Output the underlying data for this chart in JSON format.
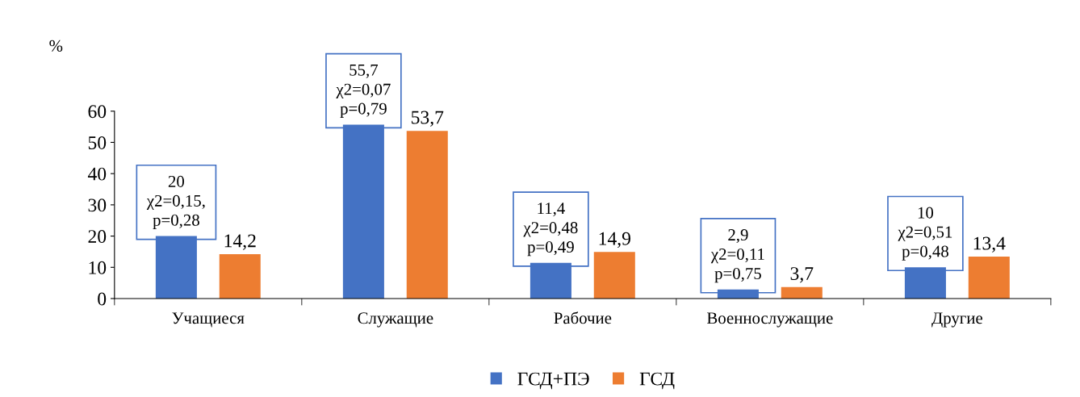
{
  "chart_data": {
    "type": "bar",
    "ylabel": "%",
    "categories": [
      "Учащиеся",
      "Служащие",
      "Рабочие",
      "Военнослужащие",
      "Другие"
    ],
    "series": [
      {
        "name": "ГСД+ПЭ",
        "color": "#4472c4",
        "values": [
          20,
          55.7,
          11.4,
          2.9,
          10
        ],
        "value_labels": [
          "20\nχ2=0,15,\np=0,28",
          "55,7\nχ2=0,07\np=0,79",
          "11,4\nχ2=0,48\np=0,49",
          "2,9\nχ2=0,11\np=0,75",
          "10\nχ2=0,51\np=0,48"
        ]
      },
      {
        "name": "ГСД",
        "color": "#ed7d31",
        "values": [
          14.2,
          53.7,
          14.9,
          3.7,
          13.4
        ],
        "value_labels": [
          "14,2",
          "53,7",
          "14,9",
          "3,7",
          "13,4"
        ]
      }
    ],
    "ylim": [
      0,
      60
    ],
    "yticks": [
      0,
      10,
      20,
      30,
      40,
      50,
      60
    ],
    "grid": false,
    "legend": "bottom"
  }
}
